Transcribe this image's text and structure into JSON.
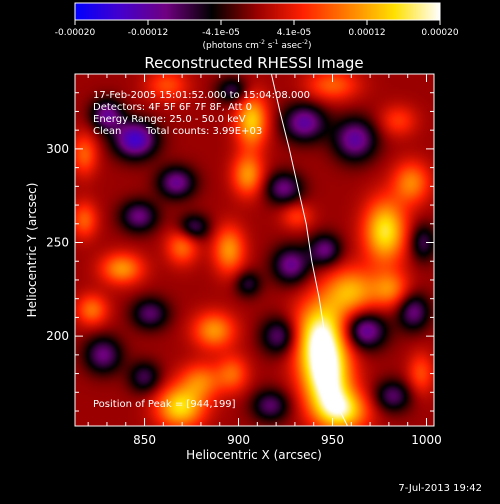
{
  "colorbar": {
    "ticks": [
      "-0.00020",
      "-0.00012",
      "-4.1e-05",
      "4.1e-05",
      "0.00012",
      "0.00020"
    ],
    "units_prefix": "(photons cm",
    "units_exp1": "-2",
    "units_mid": " s",
    "units_exp2": "-1",
    "units_mid2": " asec",
    "units_exp3": "-2",
    "units_suffix": ")",
    "colors": [
      "#0000ff",
      "#4400cc",
      "#700080",
      "#000000",
      "#9a0000",
      "#ff2000",
      "#ff8000",
      "#ffe000",
      "#ffffff"
    ]
  },
  "chart_data": {
    "type": "heatmap",
    "title": "Reconstructed RHESSI Image",
    "xlabel": "Heliocentric X (arcsec)",
    "ylabel": "Heliocentric Y (arcsec)",
    "xlim": [
      813,
      1004
    ],
    "ylim": [
      152,
      340
    ],
    "xticks": [
      850,
      900,
      950,
      1000
    ],
    "yticks": [
      200,
      250,
      300
    ],
    "vmin": -0.0002,
    "vmax": 0.0002,
    "annotations": {
      "time_range": "17-Feb-2005 15:01:52.000 to 15:04:08.000",
      "detectors": "Detectors: 4F 5F 6F 7F 8F, Att 0",
      "energy": "Energy Range: 25.0 - 50.0 keV",
      "clean_label": "Clean",
      "counts": "Total counts: 3.99E+03",
      "peak": "Position of Peak = [944,199]"
    },
    "limb_curve": {
      "x": [
        917.5,
        922,
        927,
        931.5,
        936,
        939,
        943,
        946,
        950,
        954,
        958
      ],
      "y": [
        340,
        320,
        300,
        280,
        260,
        240,
        220,
        200,
        180,
        160,
        152
      ]
    },
    "sources": [
      {
        "x": 944,
        "y": 199,
        "sx": 10,
        "sy": 14,
        "amp": 1.0
      },
      {
        "x": 947,
        "y": 176,
        "sx": 9,
        "sy": 12,
        "amp": 0.85
      },
      {
        "x": 955,
        "y": 160,
        "sx": 10,
        "sy": 8,
        "amp": 0.75
      },
      {
        "x": 869,
        "y": 162,
        "sx": 9,
        "sy": 8,
        "amp": 0.75
      },
      {
        "x": 880,
        "y": 176,
        "sx": 8,
        "sy": 7,
        "amp": 0.45
      },
      {
        "x": 960,
        "y": 224,
        "sx": 10,
        "sy": 9,
        "amp": 0.6
      },
      {
        "x": 981,
        "y": 225,
        "sx": 7,
        "sy": 7,
        "amp": 0.45
      },
      {
        "x": 978,
        "y": 256,
        "sx": 8,
        "sy": 12,
        "amp": 0.8
      },
      {
        "x": 992,
        "y": 282,
        "sx": 7,
        "sy": 8,
        "amp": 0.5
      },
      {
        "x": 907,
        "y": 315,
        "sx": 6,
        "sy": 10,
        "amp": 0.7
      },
      {
        "x": 905,
        "y": 286,
        "sx": 6,
        "sy": 8,
        "amp": 0.55
      },
      {
        "x": 895,
        "y": 246,
        "sx": 6,
        "sy": 9,
        "amp": 0.55
      },
      {
        "x": 870,
        "y": 248,
        "sx": 6,
        "sy": 7,
        "amp": 0.45
      },
      {
        "x": 887,
        "y": 203,
        "sx": 8,
        "sy": 7,
        "amp": 0.55
      },
      {
        "x": 897,
        "y": 180,
        "sx": 6,
        "sy": 7,
        "amp": 0.4
      },
      {
        "x": 818,
        "y": 297,
        "sx": 5,
        "sy": 8,
        "amp": 0.4
      },
      {
        "x": 818,
        "y": 262,
        "sx": 5,
        "sy": 7,
        "amp": 0.4
      },
      {
        "x": 838,
        "y": 236,
        "sx": 8,
        "sy": 6,
        "amp": 0.55
      },
      {
        "x": 822,
        "y": 214,
        "sx": 6,
        "sy": 6,
        "amp": 0.45
      },
      {
        "x": 862,
        "y": 334,
        "sx": 8,
        "sy": 6,
        "amp": 0.35
      },
      {
        "x": 950,
        "y": 334,
        "sx": 10,
        "sy": 6,
        "amp": 0.4
      },
      {
        "x": 997,
        "y": 180,
        "sx": 5,
        "sy": 8,
        "amp": 0.35
      },
      {
        "x": 931,
        "y": 264,
        "sx": 6,
        "sy": 5,
        "amp": 0.3
      },
      {
        "x": 985,
        "y": 315,
        "sx": 7,
        "sy": 6,
        "amp": 0.3
      },
      {
        "x": 845,
        "y": 305,
        "sx": 8,
        "sy": 7,
        "amp": -0.75
      },
      {
        "x": 830,
        "y": 318,
        "sx": 6,
        "sy": 6,
        "amp": -0.55
      },
      {
        "x": 867,
        "y": 282,
        "sx": 7,
        "sy": 6,
        "amp": -0.55
      },
      {
        "x": 847,
        "y": 264,
        "sx": 7,
        "sy": 6,
        "amp": -0.5
      },
      {
        "x": 876,
        "y": 258,
        "sx": 6,
        "sy": 5,
        "amp": -0.45
      },
      {
        "x": 935,
        "y": 314,
        "sx": 8,
        "sy": 7,
        "amp": -0.6
      },
      {
        "x": 962,
        "y": 305,
        "sx": 8,
        "sy": 8,
        "amp": -0.6
      },
      {
        "x": 924,
        "y": 279,
        "sx": 7,
        "sy": 6,
        "amp": -0.5
      },
      {
        "x": 928,
        "y": 238,
        "sx": 7,
        "sy": 7,
        "amp": -0.55
      },
      {
        "x": 946,
        "y": 246,
        "sx": 6,
        "sy": 6,
        "amp": -0.5
      },
      {
        "x": 967,
        "y": 203,
        "sx": 8,
        "sy": 7,
        "amp": -0.65
      },
      {
        "x": 922,
        "y": 200,
        "sx": 7,
        "sy": 7,
        "amp": -0.5
      },
      {
        "x": 993,
        "y": 213,
        "sx": 6,
        "sy": 7,
        "amp": -0.5
      },
      {
        "x": 982,
        "y": 168,
        "sx": 7,
        "sy": 6,
        "amp": -0.45
      },
      {
        "x": 853,
        "y": 212,
        "sx": 7,
        "sy": 6,
        "amp": -0.45
      },
      {
        "x": 828,
        "y": 190,
        "sx": 7,
        "sy": 7,
        "amp": -0.5
      },
      {
        "x": 850,
        "y": 178,
        "sx": 6,
        "sy": 6,
        "amp": -0.4
      },
      {
        "x": 917,
        "y": 163,
        "sx": 7,
        "sy": 6,
        "amp": -0.45
      },
      {
        "x": 897,
        "y": 331,
        "sx": 6,
        "sy": 5,
        "amp": -0.4
      },
      {
        "x": 998,
        "y": 250,
        "sx": 5,
        "sy": 7,
        "amp": -0.4
      },
      {
        "x": 905,
        "y": 228,
        "sx": 5,
        "sy": 5,
        "amp": -0.35
      }
    ]
  },
  "footer": {
    "timestamp": "7-Jul-2013 19:42"
  }
}
